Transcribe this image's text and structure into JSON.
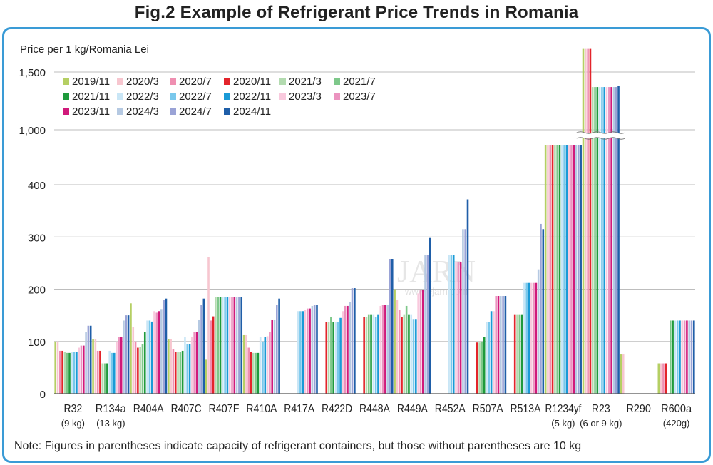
{
  "title": "Fig.2  Example of Refrigerant Price Trends in Romania",
  "note": "Note: Figures in parentheses indicate capacity of refrigerant containers, but those without parentheses are 10 kg",
  "watermark": "JARN",
  "watermark_url": "www.ejarn.com",
  "chart_data": {
    "type": "bar",
    "ylabel": "Price per 1 kg/Romania Lei",
    "axis_break": true,
    "lower_ylim": [
      0,
      400
    ],
    "lower_ticks": [
      "0",
      "100",
      "200",
      "300",
      "400"
    ],
    "upper_ylim": [
      1000,
      1500
    ],
    "upper_ticks": [
      "1,000",
      "1,500"
    ],
    "grid": true,
    "legend_position": "top-left",
    "categories": [
      {
        "name": "R32",
        "sub": "(9 kg)"
      },
      {
        "name": "R134a",
        "sub": "(13 kg)"
      },
      {
        "name": "R404A",
        "sub": ""
      },
      {
        "name": "R407C",
        "sub": ""
      },
      {
        "name": "R407F",
        "sub": ""
      },
      {
        "name": "R410A",
        "sub": ""
      },
      {
        "name": "R417A",
        "sub": ""
      },
      {
        "name": "R422D",
        "sub": ""
      },
      {
        "name": "R448A",
        "sub": ""
      },
      {
        "name": "R449A",
        "sub": ""
      },
      {
        "name": "R452A",
        "sub": ""
      },
      {
        "name": "R507A",
        "sub": ""
      },
      {
        "name": "R513A",
        "sub": ""
      },
      {
        "name": "R1234yf",
        "sub": "(5 kg)"
      },
      {
        "name": "R23",
        "sub": "(6 or 9 kg)"
      },
      {
        "name": "R290",
        "sub": ""
      },
      {
        "name": "R600a",
        "sub": "(420g)"
      }
    ],
    "series": [
      {
        "name": "2019/11",
        "color": "#b5cf63",
        "values": [
          100,
          105,
          173,
          105,
          65,
          112,
          null,
          null,
          null,
          200,
          null,
          null,
          null,
          470,
          1700,
          75,
          58
        ]
      },
      {
        "name": "2020/3",
        "color": "#f7c6cf",
        "values": [
          100,
          105,
          128,
          105,
          262,
          112,
          null,
          null,
          null,
          180,
          null,
          null,
          null,
          470,
          1700,
          75,
          58
        ]
      },
      {
        "name": "2020/7",
        "color": "#ef8fb1",
        "values": [
          82,
          82,
          100,
          85,
          140,
          88,
          null,
          null,
          null,
          160,
          null,
          null,
          null,
          470,
          1700,
          null,
          58
        ]
      },
      {
        "name": "2020/11",
        "color": "#e3242b",
        "values": [
          82,
          82,
          88,
          80,
          148,
          80,
          null,
          137,
          147,
          147,
          null,
          98,
          152,
          435,
          1700,
          null,
          58
        ]
      },
      {
        "name": "2021/3",
        "color": "#b3dbb0",
        "values": [
          80,
          58,
          90,
          80,
          185,
          78,
          null,
          137,
          147,
          152,
          null,
          98,
          152,
          420,
          1370,
          null,
          null
        ]
      },
      {
        "name": "2021/7",
        "color": "#7ec88a",
        "values": [
          78,
          58,
          95,
          80,
          185,
          78,
          null,
          147,
          152,
          168,
          null,
          100,
          152,
          405,
          1370,
          null,
          140
        ]
      },
      {
        "name": "2021/11",
        "color": "#1e9a3c",
        "values": [
          78,
          58,
          118,
          82,
          185,
          78,
          null,
          137,
          152,
          152,
          null,
          108,
          152,
          405,
          1370,
          null,
          140
        ]
      },
      {
        "name": "2022/3",
        "color": "#c9e6f6",
        "values": [
          80,
          82,
          140,
          108,
          185,
          108,
          158,
          137,
          152,
          152,
          265,
          137,
          212,
          470,
          1370,
          null,
          140
        ]
      },
      {
        "name": "2022/7",
        "color": "#79c8ec",
        "values": [
          80,
          78,
          140,
          95,
          185,
          100,
          158,
          137,
          147,
          143,
          265,
          137,
          212,
          435,
          1370,
          null,
          140
        ]
      },
      {
        "name": "2022/11",
        "color": "#1a9ad6",
        "values": [
          80,
          78,
          138,
          95,
          185,
          108,
          158,
          145,
          152,
          143,
          265,
          158,
          212,
          435,
          1370,
          null,
          140
        ]
      },
      {
        "name": "2023/3",
        "color": "#f9c9dd",
        "values": [
          88,
          100,
          158,
          108,
          185,
          110,
          160,
          158,
          168,
          192,
          252,
          158,
          212,
          405,
          1370,
          null,
          140
        ]
      },
      {
        "name": "2023/7",
        "color": "#eb93bf",
        "values": [
          92,
          108,
          155,
          118,
          185,
          118,
          163,
          168,
          170,
          198,
          252,
          187,
          212,
          405,
          1370,
          null,
          140
        ]
      },
      {
        "name": "2023/11",
        "color": "#d0197a",
        "values": [
          92,
          108,
          158,
          118,
          185,
          142,
          163,
          168,
          170,
          198,
          252,
          187,
          212,
          405,
          1370,
          null,
          140
        ]
      },
      {
        "name": "2024/3",
        "color": "#b5c9e2",
        "values": [
          118,
          140,
          162,
          142,
          185,
          142,
          168,
          175,
          170,
          265,
          315,
          187,
          238,
          405,
          1370,
          null,
          140
        ]
      },
      {
        "name": "2024/7",
        "color": "#9aa3d6",
        "values": [
          130,
          150,
          180,
          170,
          185,
          170,
          170,
          202,
          258,
          265,
          315,
          187,
          325,
          405,
          1370,
          null,
          140
        ]
      },
      {
        "name": "2024/11",
        "color": "#1f5ea8",
        "values": [
          130,
          150,
          182,
          182,
          185,
          182,
          170,
          202,
          258,
          298,
          372,
          187,
          315,
          405,
          1380,
          null,
          140
        ]
      }
    ]
  }
}
